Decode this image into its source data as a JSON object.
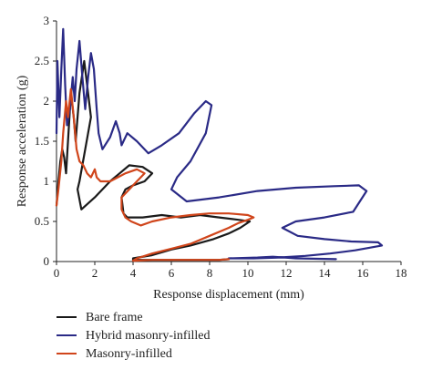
{
  "chart_data": {
    "type": "line",
    "xlabel": "Response displacement (mm)",
    "ylabel": "Response acceleration (g)",
    "xlim": [
      0,
      18
    ],
    "ylim": [
      0,
      3
    ],
    "x_ticks": [
      "0",
      "2",
      "4",
      "6",
      "8",
      "10",
      "12",
      "14",
      "16",
      "18"
    ],
    "y_ticks": [
      "0",
      "0.5",
      "1",
      "1.5",
      "2",
      "2.5",
      "3"
    ],
    "grid": false,
    "legend_position": "bottom-left (below plot)",
    "series": [
      {
        "name": "Bare frame",
        "color": "#1a1a1a",
        "points": [
          [
            0.0,
            0.7
          ],
          [
            0.1,
            1.0
          ],
          [
            0.2,
            1.25
          ],
          [
            0.3,
            1.4
          ],
          [
            0.4,
            1.3
          ],
          [
            0.5,
            1.1
          ],
          [
            0.6,
            1.5
          ],
          [
            0.75,
            2.1
          ],
          [
            0.9,
            1.8
          ],
          [
            1.0,
            1.5
          ],
          [
            1.2,
            2.1
          ],
          [
            1.45,
            2.5
          ],
          [
            1.6,
            2.2
          ],
          [
            1.8,
            1.8
          ],
          [
            1.5,
            1.4
          ],
          [
            1.2,
            1.0
          ],
          [
            1.1,
            0.9
          ],
          [
            1.3,
            0.65
          ],
          [
            2.0,
            0.8
          ],
          [
            2.8,
            1.0
          ],
          [
            3.3,
            1.1
          ],
          [
            3.8,
            1.2
          ],
          [
            4.5,
            1.18
          ],
          [
            5.0,
            1.1
          ],
          [
            4.6,
            1.0
          ],
          [
            4.0,
            0.95
          ],
          [
            3.6,
            0.9
          ],
          [
            3.4,
            0.8
          ],
          [
            3.5,
            0.6
          ],
          [
            3.7,
            0.55
          ],
          [
            4.5,
            0.55
          ],
          [
            5.5,
            0.58
          ],
          [
            6.5,
            0.55
          ],
          [
            7.5,
            0.58
          ],
          [
            8.5,
            0.55
          ],
          [
            9.5,
            0.52
          ],
          [
            10.1,
            0.5
          ],
          [
            9.6,
            0.42
          ],
          [
            9.0,
            0.35
          ],
          [
            8.2,
            0.28
          ],
          [
            7.0,
            0.2
          ],
          [
            6.0,
            0.15
          ],
          [
            5.0,
            0.08
          ],
          [
            4.0,
            0.04
          ],
          [
            4.0,
            0.02
          ],
          [
            5.5,
            0.02
          ],
          [
            7.0,
            0.02
          ],
          [
            8.5,
            0.02
          ],
          [
            9.0,
            0.03
          ]
        ]
      },
      {
        "name": "Hybrid masonry-infilled",
        "color": "#2a2a86",
        "points": [
          [
            0.0,
            1.6
          ],
          [
            0.05,
            2.5
          ],
          [
            0.15,
            1.8
          ],
          [
            0.25,
            2.4
          ],
          [
            0.35,
            2.9
          ],
          [
            0.45,
            2.2
          ],
          [
            0.55,
            1.7
          ],
          [
            0.7,
            1.9
          ],
          [
            0.85,
            2.3
          ],
          [
            0.95,
            2.0
          ],
          [
            1.05,
            2.4
          ],
          [
            1.2,
            2.75
          ],
          [
            1.35,
            2.3
          ],
          [
            1.5,
            1.9
          ],
          [
            1.65,
            2.3
          ],
          [
            1.8,
            2.6
          ],
          [
            1.95,
            2.4
          ],
          [
            2.1,
            1.9
          ],
          [
            2.2,
            1.6
          ],
          [
            2.4,
            1.4
          ],
          [
            2.8,
            1.55
          ],
          [
            3.1,
            1.75
          ],
          [
            3.3,
            1.6
          ],
          [
            3.4,
            1.45
          ],
          [
            3.7,
            1.6
          ],
          [
            4.2,
            1.5
          ],
          [
            4.8,
            1.35
          ],
          [
            5.5,
            1.45
          ],
          [
            6.4,
            1.6
          ],
          [
            7.2,
            1.85
          ],
          [
            7.8,
            2.0
          ],
          [
            8.1,
            1.95
          ],
          [
            7.8,
            1.6
          ],
          [
            7.0,
            1.25
          ],
          [
            6.3,
            1.05
          ],
          [
            6.0,
            0.9
          ],
          [
            6.8,
            0.75
          ],
          [
            8.5,
            0.8
          ],
          [
            10.5,
            0.88
          ],
          [
            12.5,
            0.92
          ],
          [
            14.5,
            0.94
          ],
          [
            15.8,
            0.95
          ],
          [
            16.2,
            0.88
          ],
          [
            15.5,
            0.62
          ],
          [
            14.0,
            0.55
          ],
          [
            12.5,
            0.5
          ],
          [
            11.8,
            0.42
          ],
          [
            12.6,
            0.32
          ],
          [
            14.0,
            0.28
          ],
          [
            15.4,
            0.25
          ],
          [
            16.8,
            0.24
          ],
          [
            17.0,
            0.2
          ],
          [
            15.6,
            0.14
          ],
          [
            14.3,
            0.1
          ],
          [
            13.0,
            0.07
          ],
          [
            11.6,
            0.05
          ],
          [
            10.3,
            0.04
          ],
          [
            9.0,
            0.04
          ],
          [
            10.5,
            0.05
          ],
          [
            11.3,
            0.06
          ],
          [
            12.5,
            0.04
          ],
          [
            14.6,
            0.03
          ]
        ]
      },
      {
        "name": "Masonry-infilled",
        "color": "#d0451b",
        "points": [
          [
            0.0,
            0.7
          ],
          [
            0.1,
            0.9
          ],
          [
            0.25,
            1.25
          ],
          [
            0.35,
            1.6
          ],
          [
            0.5,
            2.0
          ],
          [
            0.6,
            1.8
          ],
          [
            0.75,
            2.15
          ],
          [
            0.9,
            1.8
          ],
          [
            1.05,
            1.4
          ],
          [
            1.2,
            1.25
          ],
          [
            1.4,
            1.2
          ],
          [
            1.6,
            1.1
          ],
          [
            1.8,
            1.05
          ],
          [
            2.0,
            1.15
          ],
          [
            2.1,
            1.05
          ],
          [
            2.3,
            1.0
          ],
          [
            2.8,
            1.0
          ],
          [
            3.2,
            1.05
          ],
          [
            3.6,
            1.1
          ],
          [
            4.2,
            1.15
          ],
          [
            4.6,
            1.1
          ],
          [
            4.0,
            0.95
          ],
          [
            3.6,
            0.85
          ],
          [
            3.4,
            0.8
          ],
          [
            3.4,
            0.65
          ],
          [
            3.6,
            0.55
          ],
          [
            3.9,
            0.5
          ],
          [
            4.4,
            0.45
          ],
          [
            5.0,
            0.5
          ],
          [
            6.0,
            0.55
          ],
          [
            7.0,
            0.58
          ],
          [
            8.0,
            0.6
          ],
          [
            9.0,
            0.6
          ],
          [
            10.0,
            0.58
          ],
          [
            10.3,
            0.55
          ],
          [
            10.0,
            0.52
          ],
          [
            9.5,
            0.48
          ],
          [
            9.0,
            0.42
          ],
          [
            8.0,
            0.32
          ],
          [
            7.0,
            0.22
          ],
          [
            6.0,
            0.16
          ],
          [
            5.0,
            0.1
          ],
          [
            4.2,
            0.04
          ],
          [
            4.0,
            0.01
          ],
          [
            5.0,
            0.02
          ],
          [
            6.5,
            0.02
          ],
          [
            7.5,
            0.02
          ],
          [
            8.5,
            0.02
          ],
          [
            9.0,
            0.03
          ]
        ]
      }
    ]
  }
}
